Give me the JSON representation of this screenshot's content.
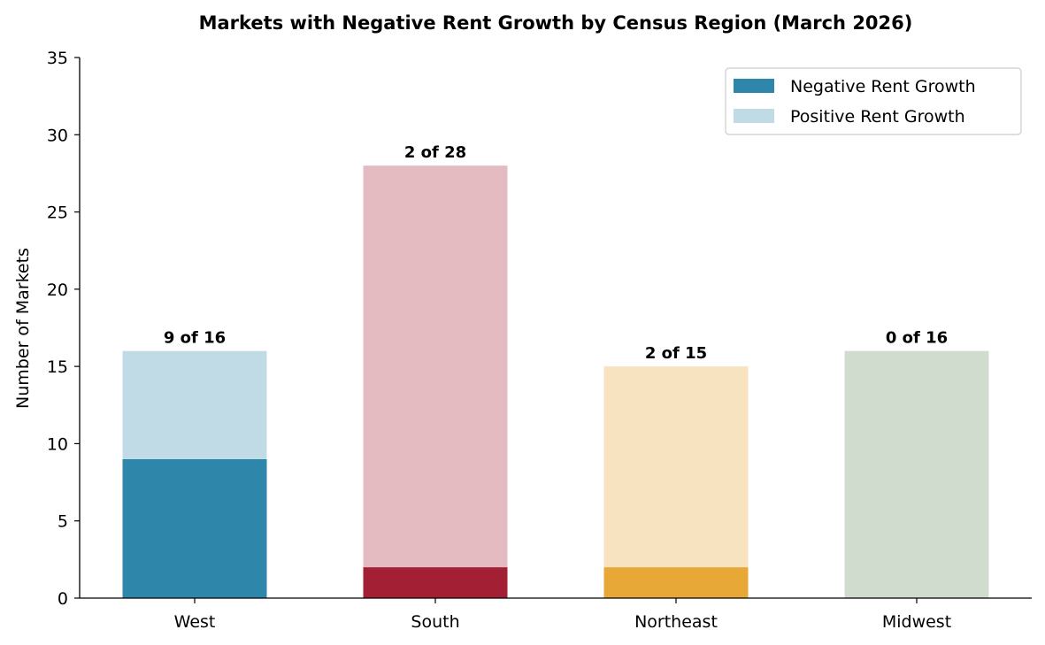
{
  "chart_data": {
    "type": "bar",
    "stacked": true,
    "title": "Markets with Negative Rent Growth by Census Region (March 2026)",
    "xlabel": "",
    "ylabel": "Number of Markets",
    "ylim": [
      0,
      35
    ],
    "yticks": [
      0,
      5,
      10,
      15,
      20,
      25,
      30,
      35
    ],
    "categories": [
      "West",
      "South",
      "Northeast",
      "Midwest"
    ],
    "series": [
      {
        "name": "Negative Rent Growth",
        "values": [
          9,
          2,
          2,
          0
        ],
        "colors": [
          "#2e86ab",
          "#a31f34",
          "#e8a838",
          "#6a8f6a"
        ]
      },
      {
        "name": "Positive Rent Growth",
        "values": [
          7,
          26,
          13,
          16
        ],
        "colors": [
          "#c1dbe6",
          "#e4bbc1",
          "#f8e3c1",
          "#cfdcce"
        ]
      }
    ],
    "data_labels": [
      "9 of 16",
      "2 of 28",
      "2 of 15",
      "0 of 16"
    ],
    "legend": {
      "placement": "top-right",
      "entries": [
        {
          "label": "Negative Rent Growth",
          "color": "#2e86ab"
        },
        {
          "label": "Positive Rent Growth",
          "color": "#c1dbe6"
        }
      ]
    },
    "grid": false
  }
}
